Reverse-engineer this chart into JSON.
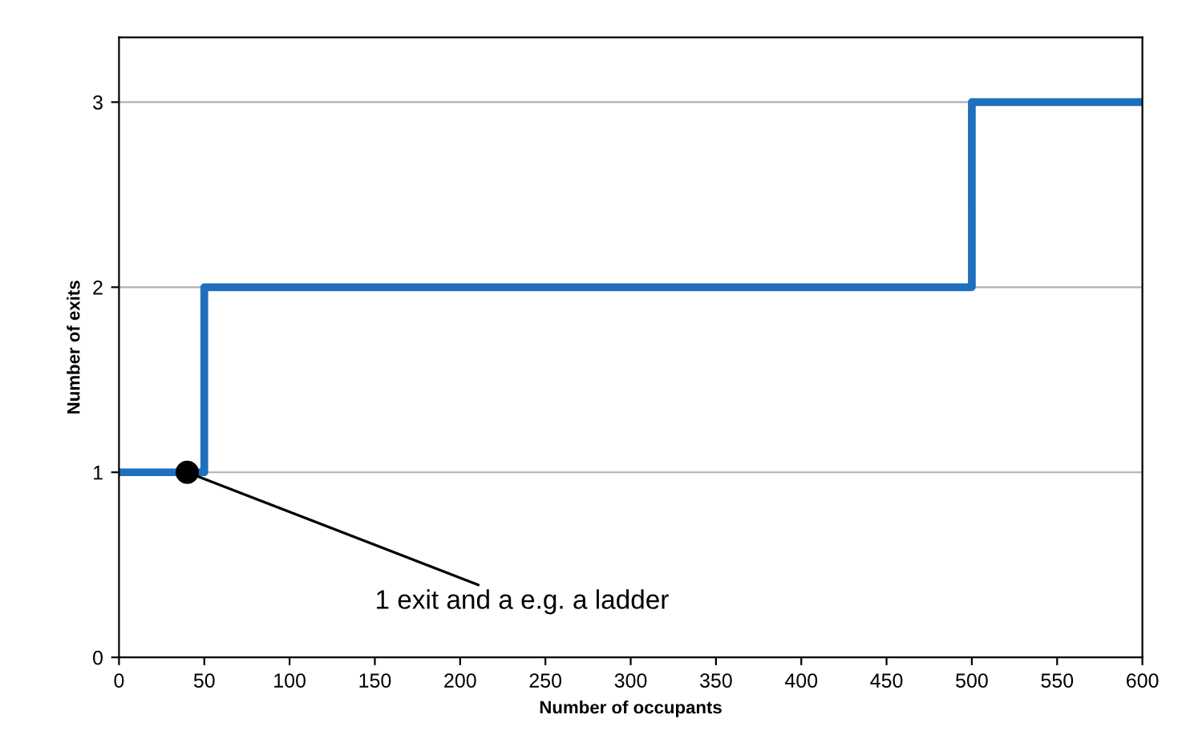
{
  "chart_data": {
    "type": "step",
    "xlabel": "Number of occupants",
    "ylabel": "Number of exits",
    "series": [
      {
        "color": "#1f6fbf",
        "x": [
          0,
          50,
          500,
          600
        ],
        "values": [
          1,
          2,
          3,
          3
        ]
      },
      {
        "type": "scatter",
        "color": "#000000",
        "x": [
          40
        ],
        "values": [
          1
        ]
      }
    ],
    "annotations": [
      {
        "text": "1 exit and a e.g. a ladder",
        "x": 40,
        "y": 1
      }
    ],
    "xlim": [
      0,
      600
    ],
    "xticks": [
      0,
      50,
      100,
      150,
      200,
      250,
      300,
      350,
      400,
      450,
      500,
      550,
      600
    ],
    "ylim": [
      0,
      3.35
    ],
    "yticks": [
      0,
      1,
      2,
      3
    ],
    "grid": "y",
    "legend": false
  }
}
